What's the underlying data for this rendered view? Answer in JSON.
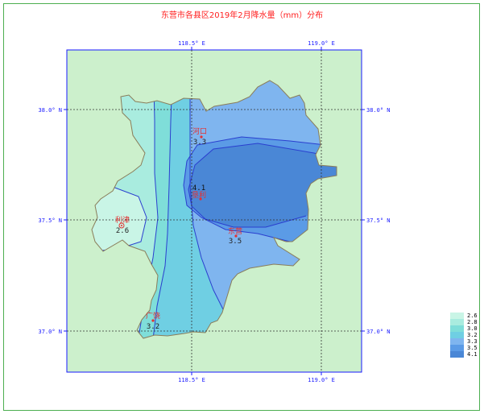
{
  "title": "东营市各县区2019年2月降水量（mm）分布",
  "longitude_labels": [
    "118.5° E",
    "119.0° E"
  ],
  "latitude_labels": [
    "38.0° N",
    "37.5° N",
    "37.0° N"
  ],
  "stations": [
    {
      "name": "河口",
      "value": "3.3"
    },
    {
      "name": "垦利",
      "value": "4.1"
    },
    {
      "name": "利津",
      "value": "2.6"
    },
    {
      "name": "东营",
      "value": "3.5"
    },
    {
      "name": "广饶",
      "value": "3.2"
    }
  ],
  "legend": {
    "items": [
      {
        "label": "2.6",
        "color": "#c9f5e6"
      },
      {
        "label": "2.8",
        "color": "#a9ecdf"
      },
      {
        "label": "3.0",
        "color": "#7fded9"
      },
      {
        "label": "3.2",
        "color": "#6fcfe3"
      },
      {
        "label": "3.3",
        "color": "#7fb5ef"
      },
      {
        "label": "3.5",
        "color": "#5b9be6"
      },
      {
        "label": "4.1",
        "color": "#4a87d6"
      }
    ]
  },
  "colors": {
    "background": "#ccf0cc",
    "frame": "#1a1aff",
    "county_line": "#8a7d5a",
    "station": "#e53030"
  }
}
